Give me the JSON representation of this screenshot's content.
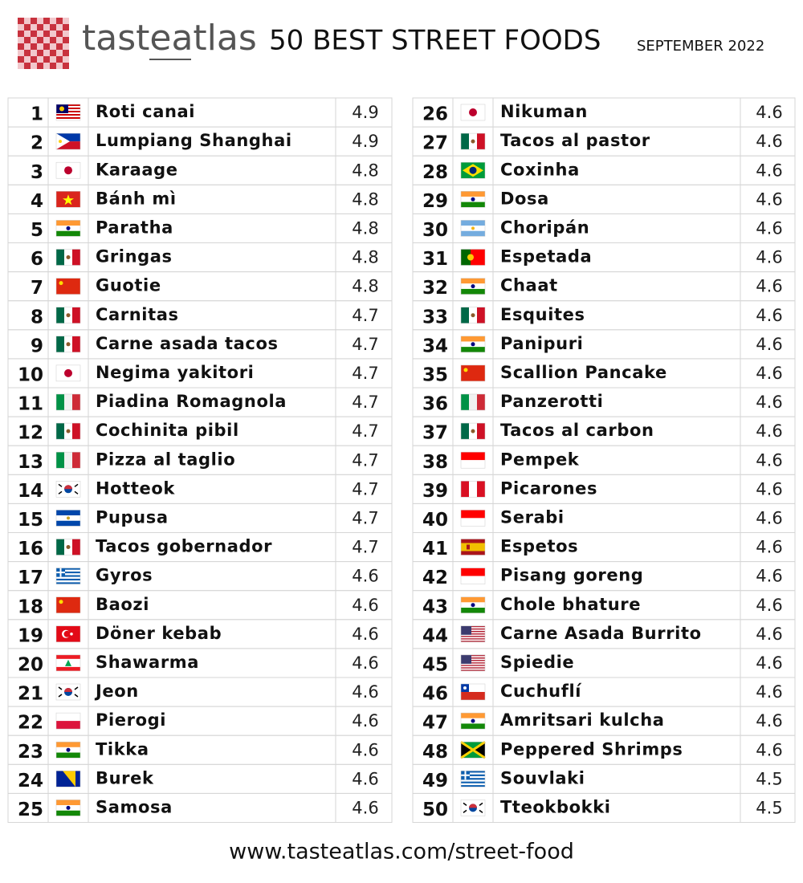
{
  "header": {
    "logo": "tasteatlas",
    "title": "50 BEST STREET FOODS",
    "date": "SEPTEMBER 2022"
  },
  "table": {
    "rows": [
      {
        "rank": 1,
        "name": "Roti canai",
        "rating": 4.9
      },
      {
        "rank": 2,
        "name": "Lumpiang Shanghai",
        "rating": 4.9
      },
      {
        "rank": 3,
        "name": "Karaage",
        "rating": 4.8
      },
      {
        "rank": 4,
        "name": "Bánh mì",
        "rating": 4.8
      },
      {
        "rank": 5,
        "name": "Paratha",
        "rating": 4.8
      },
      {
        "rank": 6,
        "name": "Gringas",
        "rating": 4.8
      },
      {
        "rank": 7,
        "name": "Guotie",
        "rating": 4.8
      },
      {
        "rank": 8,
        "name": "Carnitas",
        "rating": 4.7
      },
      {
        "rank": 9,
        "name": "Carne asada tacos",
        "rating": 4.7
      },
      {
        "rank": 10,
        "name": "Negima yakitori",
        "rating": 4.7
      },
      {
        "rank": 11,
        "name": "Piadina Romagnola",
        "rating": 4.7
      },
      {
        "rank": 12,
        "name": "Cochinita pibil",
        "rating": 4.7
      },
      {
        "rank": 13,
        "name": "Pizza al taglio",
        "rating": 4.7
      },
      {
        "rank": 14,
        "name": "Hotteok",
        "rating": 4.7
      },
      {
        "rank": 15,
        "name": "Pupusa",
        "rating": 4.7
      },
      {
        "rank": 16,
        "name": "Tacos gobernador",
        "rating": 4.7
      },
      {
        "rank": 17,
        "name": "Gyros",
        "rating": 4.6
      },
      {
        "rank": 18,
        "name": "Baozi",
        "rating": 4.6
      },
      {
        "rank": 19,
        "name": "Döner kebab",
        "rating": 4.6
      },
      {
        "rank": 20,
        "name": "Shawarma",
        "rating": 4.6
      },
      {
        "rank": 21,
        "name": "Jeon",
        "rating": 4.6
      },
      {
        "rank": 22,
        "name": "Pierogi",
        "rating": 4.6
      },
      {
        "rank": 23,
        "name": "Tikka",
        "rating": 4.6
      },
      {
        "rank": 24,
        "name": "Burek",
        "rating": 4.6
      },
      {
        "rank": 25,
        "name": "Samosa",
        "rating": 4.6
      },
      {
        "rank": 26,
        "name": "Nikuman",
        "rating": 4.6
      },
      {
        "rank": 27,
        "name": "Tacos al pastor",
        "rating": 4.6
      },
      {
        "rank": 28,
        "name": "Coxinha",
        "rating": 4.6
      },
      {
        "rank": 29,
        "name": "Dosa",
        "rating": 4.6
      },
      {
        "rank": 30,
        "name": "Choripán",
        "rating": 4.6
      },
      {
        "rank": 31,
        "name": "Espetada",
        "rating": 4.6
      },
      {
        "rank": 32,
        "name": "Chaat",
        "rating": 4.6
      },
      {
        "rank": 33,
        "name": "Esquites",
        "rating": 4.6
      },
      {
        "rank": 34,
        "name": "Panipuri",
        "rating": 4.6
      },
      {
        "rank": 35,
        "name": "Scallion Pancake",
        "rating": 4.6
      },
      {
        "rank": 36,
        "name": "Panzerotti",
        "rating": 4.6
      },
      {
        "rank": 37,
        "name": "Tacos al carbon",
        "rating": 4.6
      },
      {
        "rank": 38,
        "name": "Pempek",
        "rating": 4.6
      },
      {
        "rank": 39,
        "name": "Picarones",
        "rating": 4.6
      },
      {
        "rank": 40,
        "name": "Serabi",
        "rating": 4.6
      },
      {
        "rank": 41,
        "name": "Espetos",
        "rating": 4.6
      },
      {
        "rank": 42,
        "name": "Pisang goreng",
        "rating": 4.6
      },
      {
        "rank": 43,
        "name": "Chole bhature",
        "rating": 4.6
      },
      {
        "rank": 44,
        "name": "Carne Asada Burrito",
        "rating": 4.6
      },
      {
        "rank": 45,
        "name": "Spiedie",
        "rating": 4.6
      },
      {
        "rank": 46,
        "name": "Cuchuflí",
        "rating": 4.6
      },
      {
        "rank": 47,
        "name": "Amritsari kulcha",
        "rating": 4.6
      },
      {
        "rank": 48,
        "name": "Peppered Shrimps",
        "rating": 4.6
      },
      {
        "rank": 49,
        "name": "Souvlaki",
        "rating": 4.5
      },
      {
        "rank": 50,
        "name": "Tteokbokki",
        "rating": 4.5
      }
    ]
  },
  "footer": {
    "url": "www.tasteatlas.com/street-food"
  }
}
